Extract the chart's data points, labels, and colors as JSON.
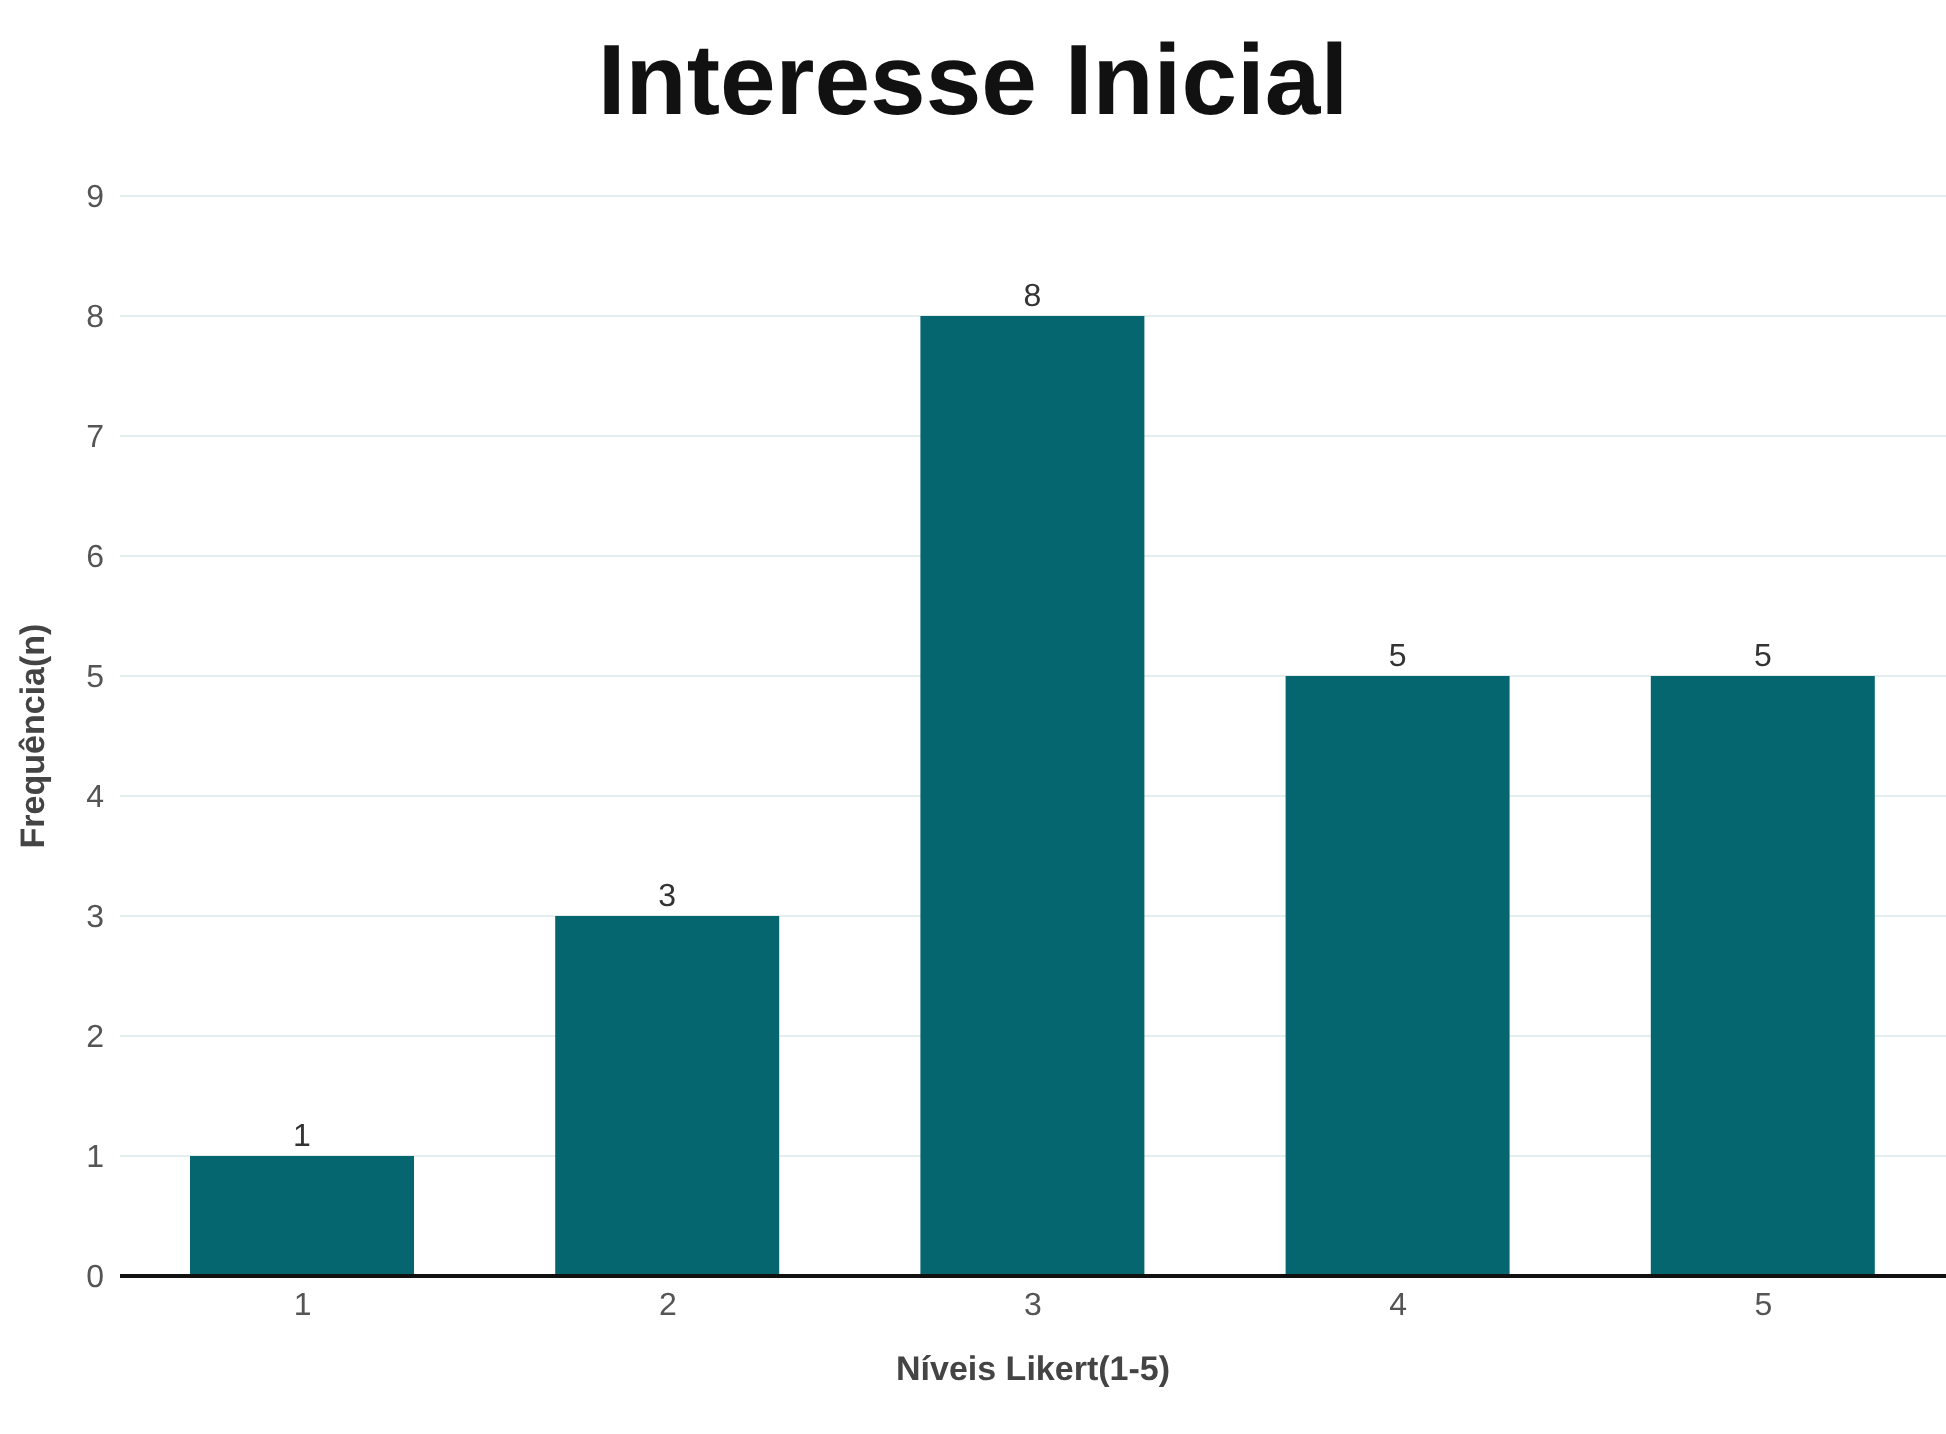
{
  "chart_data": {
    "type": "bar",
    "title": "Interesse Inicial",
    "xlabel": "Níveis Likert(1-5)",
    "ylabel": "Frequência(n)",
    "categories": [
      "1",
      "2",
      "3",
      "4",
      "5"
    ],
    "values": [
      1,
      3,
      8,
      5,
      5
    ],
    "color": "#066670",
    "ylim": [
      0,
      9
    ],
    "yticks": [
      0,
      1,
      2,
      3,
      4,
      5,
      6,
      7,
      8,
      9
    ],
    "grid": "y",
    "data_labels": true
  }
}
